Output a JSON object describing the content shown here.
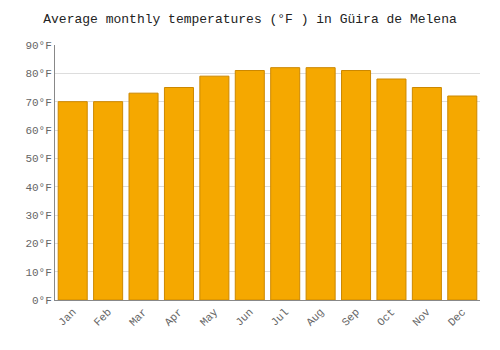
{
  "chart_data": {
    "type": "bar",
    "title": "Average monthly temperatures (°F ) in Güira de Melena",
    "categories": [
      "Jan",
      "Feb",
      "Mar",
      "Apr",
      "May",
      "Jun",
      "Jul",
      "Aug",
      "Sep",
      "Oct",
      "Nov",
      "Dec"
    ],
    "values": [
      70,
      70,
      73,
      75,
      79,
      81,
      82,
      82,
      81,
      78,
      75,
      72
    ],
    "color": "#F5A800",
    "ylim": [
      0,
      90
    ],
    "yticks": [
      {
        "value": 0,
        "label": "0°F"
      },
      {
        "value": 10,
        "label": "10°F"
      },
      {
        "value": 20,
        "label": "20°F"
      },
      {
        "value": 30,
        "label": "30°F"
      },
      {
        "value": 40,
        "label": "40°F"
      },
      {
        "value": 50,
        "label": "50°F"
      },
      {
        "value": 60,
        "label": "60°F"
      },
      {
        "value": 70,
        "label": "70°F"
      },
      {
        "value": 80,
        "label": "80°F"
      },
      {
        "value": 90,
        "label": "90°F"
      }
    ],
    "grid": true
  }
}
